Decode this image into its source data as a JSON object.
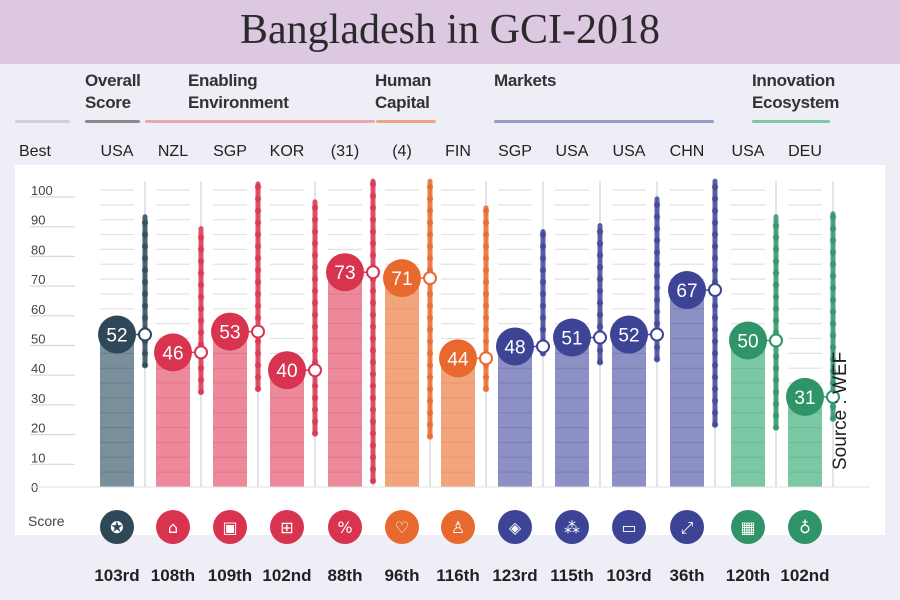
{
  "title": "Bangladesh in GCI-2018",
  "source": "Source : WEF",
  "groups": [
    {
      "label_lines": [
        "Overall",
        "Score"
      ],
      "color": "#555555"
    },
    {
      "label_lines": [
        "Enabling",
        "Environment"
      ],
      "color": "#e07a8c"
    },
    {
      "label_lines": [
        "Human",
        "Capital"
      ],
      "color": "#e8874a"
    },
    {
      "label_lines": [
        "",
        "Markets"
      ],
      "color": "#6a6fb5"
    },
    {
      "label_lines": [
        "Innovation",
        "Ecosystem"
      ],
      "color": "#3fa678"
    }
  ],
  "best_label": "Best",
  "score_label": "Score",
  "colors": {
    "overall_dark": "#2f4858",
    "overall_bar": "#7a8f9c",
    "enabling_dark": "#d8344f",
    "enabling_bar": "#ec8a9b",
    "human_dark": "#e8692e",
    "human_bar": "#f2a47c",
    "markets_dark": "#3d4495",
    "markets_bar": "#8d90c4",
    "innovation_dark": "#2f9468",
    "innovation_bar": "#7cc7a4"
  },
  "chart_data": {
    "type": "bar",
    "title": "Bangladesh in GCI-2018",
    "ylim": [
      0,
      100
    ],
    "yticks": [
      0,
      10,
      20,
      30,
      40,
      50,
      60,
      70,
      80,
      90,
      100
    ],
    "ylabel": "Score",
    "categories": [
      {
        "best": "USA",
        "score": 52,
        "rank": "103rd",
        "group": "overall",
        "icon": "award-rosette-icon",
        "dist": [
          41,
          91
        ]
      },
      {
        "best": "NZL",
        "score": 46,
        "rank": "108th",
        "group": "enabling",
        "icon": "institutions-building-icon",
        "dist": [
          32,
          87
        ]
      },
      {
        "best": "SGP",
        "score": 53,
        "rank": "109th",
        "group": "enabling",
        "icon": "infrastructure-train-icon",
        "dist": [
          33,
          102
        ]
      },
      {
        "best": "KOR",
        "score": 40,
        "rank": "102nd",
        "group": "enabling",
        "icon": "ict-chip-icon",
        "dist": [
          18,
          96
        ]
      },
      {
        "best": "(31)",
        "score": 73,
        "rank": "88th",
        "group": "enabling",
        "icon": "macro-stability-percent-icon",
        "dist": [
          2,
          103
        ]
      },
      {
        "best": "(4)",
        "score": 71,
        "rank": "96th",
        "group": "human",
        "icon": "health-heart-icon",
        "dist": [
          17,
          103
        ]
      },
      {
        "best": "FIN",
        "score": 44,
        "rank": "116th",
        "group": "human",
        "icon": "skills-graduate-icon",
        "dist": [
          33,
          94
        ]
      },
      {
        "best": "SGP",
        "score": 48,
        "rank": "123rd",
        "group": "markets",
        "icon": "product-market-tag-icon",
        "dist": [
          45,
          86
        ]
      },
      {
        "best": "USA",
        "score": 51,
        "rank": "115th",
        "group": "markets",
        "icon": "labour-market-people-icon",
        "dist": [
          42,
          88
        ]
      },
      {
        "best": "USA",
        "score": 52,
        "rank": "103rd",
        "group": "markets",
        "icon": "financial-card-icon",
        "dist": [
          43,
          97
        ]
      },
      {
        "best": "CHN",
        "score": 67,
        "rank": "36th",
        "group": "markets",
        "icon": "market-size-expand-icon",
        "dist": [
          21,
          103
        ]
      },
      {
        "best": "USA",
        "score": 50,
        "rank": "120th",
        "group": "innovation",
        "icon": "business-dynamism-building-icon",
        "dist": [
          20,
          91
        ]
      },
      {
        "best": "DEU",
        "score": 31,
        "rank": "102nd",
        "group": "innovation",
        "icon": "innovation-lightbulb-icon",
        "dist": [
          23,
          92
        ]
      }
    ]
  }
}
